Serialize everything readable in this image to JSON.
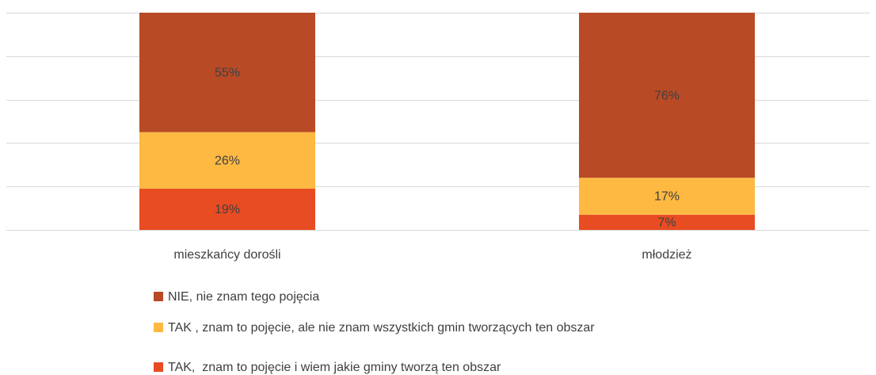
{
  "chart_data": {
    "type": "stacked_bar",
    "categories": [
      "mieszkańcy dorośli",
      "młodzież"
    ],
    "series": [
      {
        "name": "TAK,  znam to pojęcie i wiem jakie gminy tworzą ten obszar",
        "color": "#e84c22",
        "values": [
          19,
          7
        ],
        "value_labels": [
          "19%",
          "7%"
        ]
      },
      {
        "name": "TAK , znam to pojęcie, ale nie znam wszystkich gmin tworzących ten obszar",
        "color": "#fdb942",
        "values": [
          26,
          17
        ],
        "value_labels": [
          "26%",
          "17%"
        ]
      },
      {
        "name": "NIE, nie znam tego pojęcia",
        "color": "#b84a26",
        "values": [
          55,
          76
        ],
        "value_labels": [
          "55%",
          "76%"
        ]
      }
    ],
    "ylim": [
      0,
      100
    ],
    "yticks": [
      0,
      20,
      40,
      60,
      80,
      100
    ],
    "grid": true,
    "legend": "bottom"
  }
}
